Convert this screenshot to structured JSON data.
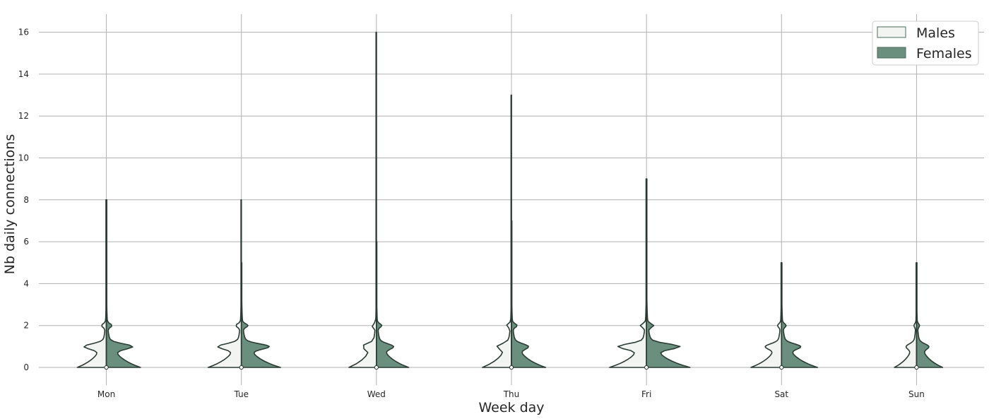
{
  "chart_data": {
    "type": "violin",
    "xlabel": "Week day",
    "ylabel": "Nb daily connections",
    "categories": [
      "Mon",
      "Tue",
      "Wed",
      "Thu",
      "Fri",
      "Sat",
      "Sun"
    ],
    "yticks": [
      "0",
      "2",
      "4",
      "6",
      "8",
      "10",
      "12",
      "14",
      "16"
    ],
    "ylim": [
      -0.8,
      16.9
    ],
    "grid": true,
    "legend": {
      "position": "top-right"
    },
    "series": [
      {
        "name": "Males",
        "color": "#f2f4f2",
        "side": "left",
        "max": [
          8,
          8,
          16,
          13,
          9,
          5,
          5
        ],
        "median": [
          0,
          0,
          0,
          0,
          0,
          0,
          0
        ]
      },
      {
        "name": "Females",
        "color": "#6a8f7f",
        "side": "right",
        "max": [
          8,
          5,
          6,
          7,
          9,
          5,
          5
        ],
        "median": [
          0,
          0,
          0,
          0,
          0,
          0,
          0
        ]
      }
    ],
    "edge_color": "#2b3b34"
  }
}
